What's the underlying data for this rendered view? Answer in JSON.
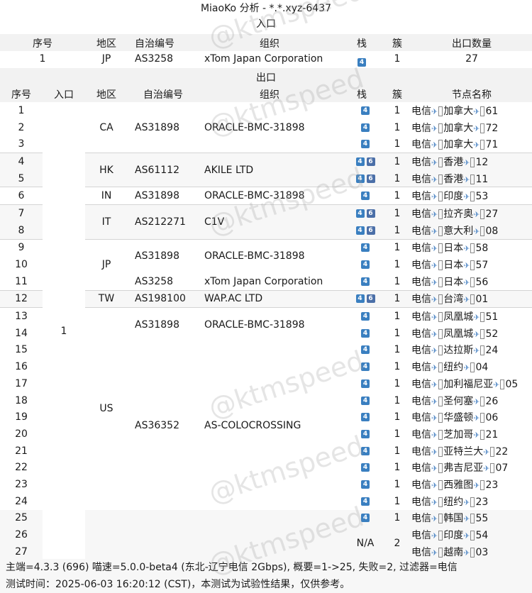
{
  "title": "MiaoKo 分析 - *.*.xyz-6437",
  "entry_section": "入口",
  "exit_section": "出口",
  "entry_headers": {
    "idx": "序号",
    "region": "地区",
    "asn": "自治编号",
    "org": "组织",
    "stack": "栈",
    "cluster": "簇",
    "count": "出口数量"
  },
  "entry_row": {
    "idx": "1",
    "region": "JP",
    "asn": "AS3258",
    "org": "xTom Japan Corporation",
    "stack": "4",
    "cluster": "1",
    "count": "27"
  },
  "exit_headers": {
    "idx": "序号",
    "entry": "入口",
    "region": "地区",
    "asn": "自治编号",
    "org": "组织",
    "stack": "栈",
    "cluster": "簇",
    "node": "节点名称"
  },
  "exit_entry_value": "1",
  "exit_rows": [
    {
      "idx": "1",
      "stack": "4",
      "cluster": "1",
      "node_pre": "电信",
      "node_mid": "加拿大",
      "node_suf": "61"
    },
    {
      "idx": "2",
      "stack": "4",
      "cluster": "1",
      "node_pre": "电信",
      "node_mid": "加拿大",
      "node_suf": "72"
    },
    {
      "idx": "3",
      "stack": "4",
      "cluster": "1",
      "node_pre": "电信",
      "node_mid": "加拿大",
      "node_suf": "71"
    },
    {
      "idx": "4",
      "stack": "46",
      "cluster": "1",
      "node_pre": "电信",
      "node_mid": "香港",
      "node_suf": "12"
    },
    {
      "idx": "5",
      "stack": "46",
      "cluster": "1",
      "node_pre": "电信",
      "node_mid": "香港",
      "node_suf": "11"
    },
    {
      "idx": "6",
      "stack": "4",
      "cluster": "1",
      "node_pre": "电信",
      "node_mid": "印度",
      "node_suf": "53"
    },
    {
      "idx": "7",
      "stack": "46",
      "cluster": "1",
      "node_pre": "电信",
      "node_mid": "拉齐奥",
      "node_suf": "27"
    },
    {
      "idx": "8",
      "stack": "46",
      "cluster": "1",
      "node_pre": "电信",
      "node_mid": "意大利",
      "node_suf": "08"
    },
    {
      "idx": "9",
      "stack": "4",
      "cluster": "1",
      "node_pre": "电信",
      "node_mid": "日本",
      "node_suf": "58"
    },
    {
      "idx": "10",
      "stack": "4",
      "cluster": "1",
      "node_pre": "电信",
      "node_mid": "日本",
      "node_suf": "57"
    },
    {
      "idx": "11",
      "stack": "4",
      "cluster": "1",
      "node_pre": "电信",
      "node_mid": "日本",
      "node_suf": "56"
    },
    {
      "idx": "12",
      "stack": "46",
      "cluster": "1",
      "node_pre": "电信",
      "node_mid": "台湾",
      "node_suf": "01"
    },
    {
      "idx": "13",
      "stack": "4",
      "cluster": "1",
      "node_pre": "电信",
      "node_mid": "凤凰城",
      "node_suf": "51"
    },
    {
      "idx": "14",
      "stack": "4",
      "cluster": "1",
      "node_pre": "电信",
      "node_mid": "凤凰城",
      "node_suf": "52"
    },
    {
      "idx": "15",
      "stack": "4",
      "cluster": "1",
      "node_pre": "电信",
      "node_mid": "达拉斯",
      "node_suf": "24"
    },
    {
      "idx": "16",
      "stack": "4",
      "cluster": "1",
      "node_pre": "电信",
      "node_mid": "纽约",
      "node_suf": "04"
    },
    {
      "idx": "17",
      "stack": "4",
      "cluster": "1",
      "node_pre": "电信",
      "node_mid": "加利福尼亚",
      "node_suf": "05"
    },
    {
      "idx": "18",
      "stack": "4",
      "cluster": "1",
      "node_pre": "电信",
      "node_mid": "圣何塞",
      "node_suf": "26"
    },
    {
      "idx": "19",
      "stack": "4",
      "cluster": "1",
      "node_pre": "电信",
      "node_mid": "华盛顿",
      "node_suf": "06"
    },
    {
      "idx": "20",
      "stack": "4",
      "cluster": "1",
      "node_pre": "电信",
      "node_mid": "芝加哥",
      "node_suf": "21"
    },
    {
      "idx": "21",
      "stack": "4",
      "cluster": "1",
      "node_pre": "电信",
      "node_mid": "亚特兰大",
      "node_suf": "22"
    },
    {
      "idx": "22",
      "stack": "4",
      "cluster": "1",
      "node_pre": "电信",
      "node_mid": "弗吉尼亚",
      "node_suf": "07"
    },
    {
      "idx": "23",
      "stack": "4",
      "cluster": "1",
      "node_pre": "电信",
      "node_mid": "西雅图",
      "node_suf": "23"
    },
    {
      "idx": "24",
      "stack": "4",
      "cluster": "1",
      "node_pre": "电信",
      "node_mid": "纽约",
      "node_suf": "23"
    },
    {
      "idx": "25",
      "stack": "4",
      "cluster": "1",
      "node_pre": "电信",
      "node_mid": "韩国",
      "node_suf": "55"
    },
    {
      "idx": "26",
      "stack": "",
      "cluster": "",
      "node_pre": "电信",
      "node_mid": "印度",
      "node_suf": "54"
    },
    {
      "idx": "27",
      "stack": "",
      "cluster": "",
      "node_pre": "电信",
      "node_mid": "越南",
      "node_suf": "03"
    }
  ],
  "region_groups": [
    {
      "label": "CA",
      "rows": [
        1,
        3
      ]
    },
    {
      "label": "HK",
      "rows": [
        4,
        5
      ]
    },
    {
      "label": "IN",
      "rows": [
        6,
        6
      ]
    },
    {
      "label": "IT",
      "rows": [
        7,
        8
      ]
    },
    {
      "label": "JP",
      "rows": [
        9,
        11
      ]
    },
    {
      "label": "TW",
      "rows": [
        12,
        12
      ]
    },
    {
      "label": "US",
      "rows": [
        13,
        24
      ]
    }
  ],
  "asn_groups": [
    {
      "asn": "AS31898",
      "org": "ORACLE-BMC-31898",
      "rows": [
        1,
        3
      ]
    },
    {
      "asn": "AS61112",
      "org": "AKILE LTD",
      "rows": [
        4,
        5
      ]
    },
    {
      "asn": "AS31898",
      "org": "ORACLE-BMC-31898",
      "rows": [
        6,
        6
      ]
    },
    {
      "asn": "AS212271",
      "org": "C1V",
      "rows": [
        7,
        8
      ]
    },
    {
      "asn": "AS31898",
      "org": "ORACLE-BMC-31898",
      "rows": [
        9,
        10
      ]
    },
    {
      "asn": "AS3258",
      "org": "xTom Japan Corporation",
      "rows": [
        11,
        11
      ]
    },
    {
      "asn": "AS198100",
      "org": "WAP.AC LTD",
      "rows": [
        12,
        12
      ]
    },
    {
      "asn": "AS31898",
      "org": "ORACLE-BMC-31898",
      "rows": [
        13,
        14
      ]
    },
    {
      "asn": "AS36352",
      "org": "AS-COLOCROSSING",
      "rows": [
        15,
        24
      ]
    }
  ],
  "na_group": {
    "stack": "N/A",
    "cluster": "2"
  },
  "footer": {
    "line1": "主端=4.3.3 (696) 喵速=5.0.0-beta4 (东北-辽宁电信 2Gbps), 概要=1->25, 失败=2, 过滤器=电信",
    "line2": "测试时间：2025-06-03 16:20:12 (CST)，本测试为试验性结果，仅供参考。"
  },
  "watermark": "@ktmspeed",
  "colors": {
    "ipv4_badge": "#3a7fc0",
    "ipv6_badge": "#4b6fa8",
    "header_bg": "#f2f2f2",
    "band_bg": "#f7f7f7"
  }
}
